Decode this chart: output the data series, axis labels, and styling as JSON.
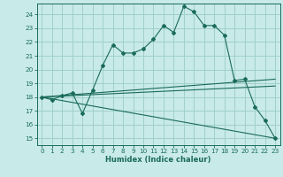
{
  "xlabel": "Humidex (Indice chaleur)",
  "bg_color": "#c8eae8",
  "grid_color": "#a0d0cc",
  "line_color": "#1a6b5a",
  "xlim": [
    -0.5,
    23.5
  ],
  "ylim": [
    14.5,
    24.8
  ],
  "yticks": [
    15,
    16,
    17,
    18,
    19,
    20,
    21,
    22,
    23,
    24
  ],
  "xticks": [
    0,
    1,
    2,
    3,
    4,
    5,
    6,
    7,
    8,
    9,
    10,
    11,
    12,
    13,
    14,
    15,
    16,
    17,
    18,
    19,
    20,
    21,
    22,
    23
  ],
  "series1_x": [
    0,
    1,
    2,
    3,
    4,
    5,
    6,
    7,
    8,
    9,
    10,
    11,
    12,
    13,
    14,
    15,
    16,
    17,
    18,
    19,
    20,
    21,
    22,
    23
  ],
  "series1_y": [
    18.0,
    17.8,
    18.1,
    18.3,
    16.8,
    18.5,
    20.3,
    21.8,
    21.2,
    21.2,
    21.5,
    22.2,
    23.2,
    22.7,
    24.6,
    24.2,
    23.2,
    23.2,
    22.5,
    19.2,
    19.3,
    17.3,
    16.3,
    15.0
  ],
  "series2_x": [
    0,
    23
  ],
  "series2_y": [
    18.0,
    15.0
  ],
  "series3_x": [
    0,
    23
  ],
  "series3_y": [
    18.0,
    19.3
  ],
  "series4_x": [
    0,
    23
  ],
  "series4_y": [
    18.0,
    18.8
  ],
  "marker": "D",
  "markersize": 2.0,
  "lw": 0.8,
  "tick_fontsize": 5.2,
  "xlabel_fontsize": 6.0
}
